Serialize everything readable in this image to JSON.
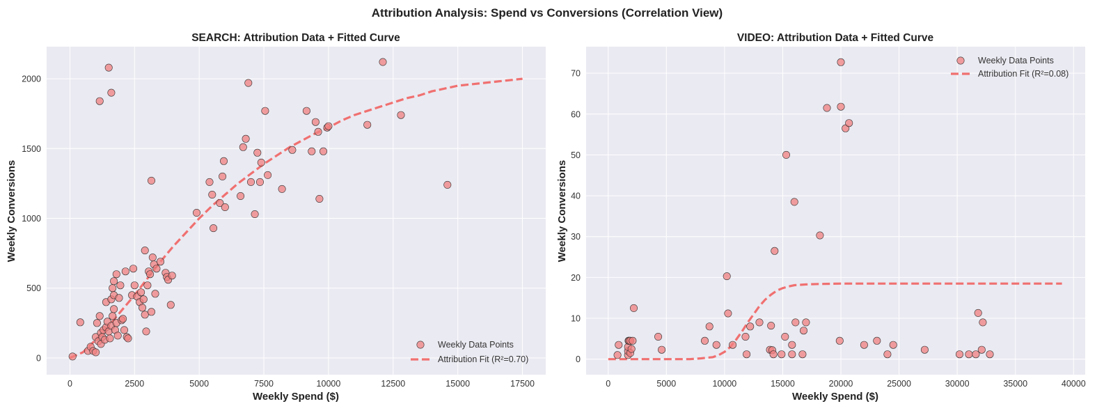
{
  "figure_title": "Attribution Analysis: Spend vs Conversions (Correlation View)",
  "colors": {
    "plot_background": "#eaeaf2",
    "grid": "#ffffff",
    "points_fill": "#f08080",
    "points_edge": "#333333",
    "fit_line": "#f07070"
  },
  "chart_data": [
    {
      "type": "scatter",
      "title": "SEARCH: Attribution Data + Fitted Curve",
      "xlabel": "Weekly Spend ($)",
      "ylabel": "Weekly Conversions",
      "xlim": [
        -900,
        18400
      ],
      "ylim": [
        -120,
        2230
      ],
      "xticks": [
        0,
        2500,
        5000,
        7500,
        10000,
        12500,
        15000,
        17500
      ],
      "yticks": [
        0,
        500,
        1000,
        1500,
        2000
      ],
      "grid": true,
      "legend_position": "bottom-right",
      "legend": [
        "Weekly Data Points",
        "Attribution Fit (R²=0.70)"
      ],
      "series": [
        {
          "name": "Weekly Data Points",
          "kind": "scatter",
          "points": [
            [
              100,
              10
            ],
            [
              400,
              255
            ],
            [
              700,
              50
            ],
            [
              800,
              80
            ],
            [
              900,
              50
            ],
            [
              1000,
              40
            ],
            [
              1000,
              150
            ],
            [
              1050,
              250
            ],
            [
              1100,
              120
            ],
            [
              1150,
              300
            ],
            [
              1200,
              180
            ],
            [
              1200,
              100
            ],
            [
              1250,
              150
            ],
            [
              1300,
              200
            ],
            [
              1350,
              130
            ],
            [
              1400,
              220
            ],
            [
              1400,
              400
            ],
            [
              1450,
              260
            ],
            [
              1500,
              190
            ],
            [
              1550,
              140
            ],
            [
              1600,
              420
            ],
            [
              1600,
              230
            ],
            [
              1650,
              500
            ],
            [
              1650,
              300
            ],
            [
              1700,
              550
            ],
            [
              1700,
              450
            ],
            [
              1700,
              350
            ],
            [
              1750,
              200
            ],
            [
              1800,
              600
            ],
            [
              1800,
              250
            ],
            [
              1850,
              160
            ],
            [
              1900,
              430
            ],
            [
              1950,
              520
            ],
            [
              2000,
              270
            ],
            [
              2050,
              280
            ],
            [
              2100,
              200
            ],
            [
              2150,
              620
            ],
            [
              2200,
              150
            ],
            [
              2250,
              140
            ],
            [
              2400,
              450
            ],
            [
              2450,
              640
            ],
            [
              2500,
              520
            ],
            [
              2600,
              440
            ],
            [
              2700,
              400
            ],
            [
              2750,
              470
            ],
            [
              2800,
              360
            ],
            [
              2850,
              420
            ],
            [
              2900,
              310
            ],
            [
              2900,
              770
            ],
            [
              2950,
              190
            ],
            [
              3000,
              520
            ],
            [
              3050,
              620
            ],
            [
              3100,
              600
            ],
            [
              3150,
              330
            ],
            [
              3200,
              720
            ],
            [
              3250,
              670
            ],
            [
              3300,
              460
            ],
            [
              3350,
              640
            ],
            [
              3500,
              690
            ],
            [
              3700,
              610
            ],
            [
              3750,
              580
            ],
            [
              3800,
              560
            ],
            [
              3900,
              380
            ],
            [
              3950,
              590
            ],
            [
              1150,
              1840
            ],
            [
              1500,
              2080
            ],
            [
              1600,
              1900
            ],
            [
              3150,
              1270
            ],
            [
              4900,
              1040
            ],
            [
              5400,
              1260
            ],
            [
              5500,
              1170
            ],
            [
              5550,
              930
            ],
            [
              5800,
              1110
            ],
            [
              5900,
              1300
            ],
            [
              5950,
              1410
            ],
            [
              6000,
              1080
            ],
            [
              6600,
              1160
            ],
            [
              6700,
              1510
            ],
            [
              6800,
              1570
            ],
            [
              6900,
              1970
            ],
            [
              7000,
              1260
            ],
            [
              7150,
              1030
            ],
            [
              7250,
              1470
            ],
            [
              7350,
              1260
            ],
            [
              7400,
              1400
            ],
            [
              7550,
              1770
            ],
            [
              7650,
              1310
            ],
            [
              8200,
              1210
            ],
            [
              8600,
              1490
            ],
            [
              9150,
              1770
            ],
            [
              9350,
              1480
            ],
            [
              9500,
              1690
            ],
            [
              9600,
              1620
            ],
            [
              9650,
              1140
            ],
            [
              9800,
              1480
            ],
            [
              9950,
              1650
            ],
            [
              10000,
              1660
            ],
            [
              11500,
              1670
            ],
            [
              12100,
              2120
            ],
            [
              12800,
              1740
            ],
            [
              14600,
              1240
            ]
          ]
        },
        {
          "name": "Attribution Fit (R²=0.70)",
          "kind": "line",
          "style": "dashed",
          "points": [
            [
              0,
              0
            ],
            [
              500,
              40
            ],
            [
              1000,
              130
            ],
            [
              1500,
              230
            ],
            [
              2000,
              340
            ],
            [
              2500,
              450
            ],
            [
              3000,
              570
            ],
            [
              3500,
              690
            ],
            [
              4000,
              800
            ],
            [
              4500,
              900
            ],
            [
              5000,
              1000
            ],
            [
              5500,
              1090
            ],
            [
              6000,
              1170
            ],
            [
              6500,
              1250
            ],
            [
              7000,
              1320
            ],
            [
              7500,
              1390
            ],
            [
              8000,
              1450
            ],
            [
              8500,
              1510
            ],
            [
              9000,
              1560
            ],
            [
              9500,
              1610
            ],
            [
              10000,
              1650
            ],
            [
              10500,
              1700
            ],
            [
              11000,
              1740
            ],
            [
              11500,
              1770
            ],
            [
              12000,
              1800
            ],
            [
              12500,
              1830
            ],
            [
              13000,
              1860
            ],
            [
              13500,
              1880
            ],
            [
              14000,
              1910
            ],
            [
              14500,
              1930
            ],
            [
              15000,
              1950
            ],
            [
              15500,
              1960
            ],
            [
              16000,
              1970
            ],
            [
              16500,
              1980
            ],
            [
              17000,
              1990
            ],
            [
              17500,
              2000
            ]
          ]
        }
      ]
    },
    {
      "type": "scatter",
      "title": "VIDEO: Attribution Data + Fitted Curve",
      "xlabel": "Weekly Spend ($)",
      "ylabel": "Weekly Conversions",
      "xlim": [
        -1900,
        41000
      ],
      "ylim": [
        -3.8,
        76.5
      ],
      "xticks": [
        0,
        5000,
        10000,
        15000,
        20000,
        25000,
        30000,
        35000,
        40000
      ],
      "yticks": [
        0,
        10,
        20,
        30,
        40,
        50,
        60,
        70
      ],
      "grid": true,
      "legend_position": "top-right",
      "legend": [
        "Weekly Data Points",
        "Attribution Fit (R²=0.08)"
      ],
      "series": [
        {
          "name": "Weekly Data Points",
          "kind": "scatter",
          "points": [
            [
              800,
              1
            ],
            [
              900,
              3.5
            ],
            [
              1700,
              1
            ],
            [
              1700,
              2
            ],
            [
              1700,
              3
            ],
            [
              1750,
              4.5
            ],
            [
              1800,
              4.5
            ],
            [
              1900,
              1.5
            ],
            [
              1900,
              4.5
            ],
            [
              2000,
              2.5
            ],
            [
              2100,
              4.5
            ],
            [
              2200,
              12.5
            ],
            [
              4300,
              5.5
            ],
            [
              4600,
              2.3
            ],
            [
              8300,
              4.5
            ],
            [
              8700,
              8
            ],
            [
              9300,
              3.5
            ],
            [
              10200,
              20.3
            ],
            [
              10300,
              11.2
            ],
            [
              10700,
              3.5
            ],
            [
              11800,
              5.5
            ],
            [
              11900,
              1.2
            ],
            [
              12200,
              8
            ],
            [
              13000,
              9
            ],
            [
              13900,
              2.3
            ],
            [
              14000,
              8.2
            ],
            [
              14100,
              2.2
            ],
            [
              14200,
              1.2
            ],
            [
              14300,
              26.5
            ],
            [
              14900,
              1.2
            ],
            [
              15200,
              5.5
            ],
            [
              15300,
              50
            ],
            [
              15800,
              1.2
            ],
            [
              15800,
              3.5
            ],
            [
              16000,
              38.5
            ],
            [
              16100,
              9
            ],
            [
              16700,
              1.2
            ],
            [
              16800,
              7
            ],
            [
              17000,
              9
            ],
            [
              18200,
              30.3
            ],
            [
              18800,
              61.5
            ],
            [
              19900,
              4.5
            ],
            [
              20000,
              61.8
            ],
            [
              20000,
              72.7
            ],
            [
              20400,
              56.5
            ],
            [
              20700,
              57.8
            ],
            [
              22000,
              3.5
            ],
            [
              23100,
              4.5
            ],
            [
              24000,
              1.2
            ],
            [
              24500,
              3.5
            ],
            [
              27200,
              2.3
            ],
            [
              30200,
              1.2
            ],
            [
              31000,
              1.2
            ],
            [
              31600,
              1.2
            ],
            [
              31800,
              11.3
            ],
            [
              32100,
              2.3
            ],
            [
              32200,
              9
            ],
            [
              32800,
              1.2
            ]
          ]
        },
        {
          "name": "Attribution Fit (R²=0.08)",
          "kind": "line",
          "style": "dashed",
          "points": [
            [
              0,
              0
            ],
            [
              2000,
              0
            ],
            [
              4000,
              0
            ],
            [
              6000,
              0
            ],
            [
              7000,
              0
            ],
            [
              8000,
              0.2
            ],
            [
              9000,
              0.5
            ],
            [
              9500,
              1
            ],
            [
              10000,
              1.8
            ],
            [
              10500,
              3
            ],
            [
              11000,
              4.8
            ],
            [
              11500,
              6.8
            ],
            [
              12000,
              9
            ],
            [
              12500,
              11
            ],
            [
              13000,
              13
            ],
            [
              13500,
              14.6
            ],
            [
              14000,
              15.8
            ],
            [
              14500,
              16.8
            ],
            [
              15000,
              17.4
            ],
            [
              15500,
              17.8
            ],
            [
              16000,
              18.1
            ],
            [
              17000,
              18.3
            ],
            [
              18000,
              18.4
            ],
            [
              20000,
              18.5
            ],
            [
              25000,
              18.5
            ],
            [
              30000,
              18.5
            ],
            [
              35000,
              18.5
            ],
            [
              39000,
              18.5
            ]
          ]
        }
      ]
    }
  ]
}
